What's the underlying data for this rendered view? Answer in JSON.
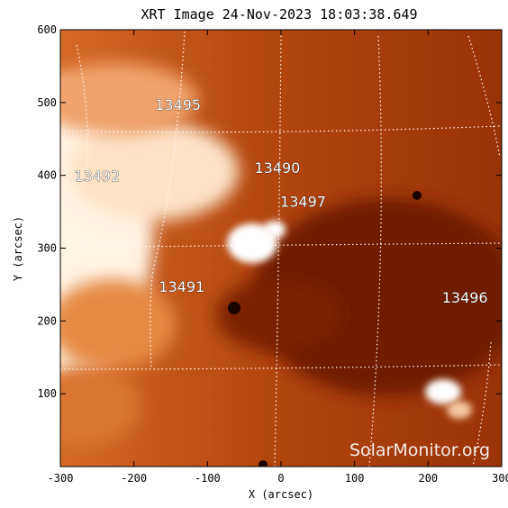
{
  "title": "XRT Image 24-Nov-2023 18:03:38.649",
  "x_axis": {
    "label": "X (arcsec)",
    "range": [
      -300,
      300
    ],
    "ticks": [
      "-300",
      "-200",
      "-100",
      "0",
      "100",
      "200",
      "300"
    ]
  },
  "y_axis": {
    "label": "Y (arcsec)",
    "range": [
      0,
      600
    ],
    "ticks": [
      "100",
      "200",
      "300",
      "400",
      "500",
      "600"
    ]
  },
  "regions": [
    {
      "label": "13495",
      "x": -140,
      "y": 490
    },
    {
      "label": "13492",
      "x": -250,
      "y": 392
    },
    {
      "label": "13490",
      "x": -5,
      "y": 403
    },
    {
      "label": "13497",
      "x": 30,
      "y": 357
    },
    {
      "label": "13491",
      "x": -135,
      "y": 240
    },
    {
      "label": "13496",
      "x": 250,
      "y": 225
    }
  ],
  "watermark": "SolarMonitor.org",
  "colors": {
    "background_dark": "#8c2a06",
    "midtone": "#c4561a",
    "bright": "#ffffff",
    "grid": "#ffffff"
  }
}
